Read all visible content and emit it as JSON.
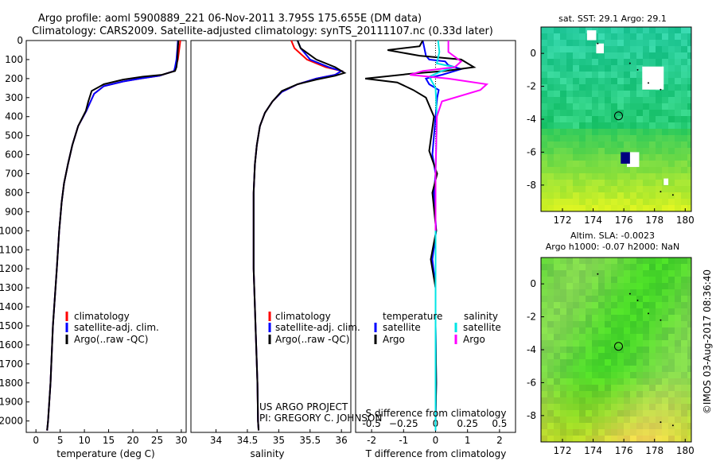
{
  "title": {
    "line1": "Argo profile: aoml 5900889_221 06-Nov-2011 3.795S 175.655E (DM data)",
    "line2": "Climatology: CARS2009. Satellite-adjusted climatology: synTS_20111107.nc (0.33d later)"
  },
  "chart_data": [
    {
      "type": "line",
      "name": "temperature-profile",
      "xlabel": "temperature (deg C)",
      "ylabel": "",
      "xlim": [
        -2,
        31
      ],
      "ylim": [
        2060,
        0
      ],
      "xticks": [
        0,
        5,
        10,
        15,
        20,
        25,
        30
      ],
      "yticks": [
        0,
        100,
        200,
        300,
        400,
        500,
        600,
        700,
        800,
        900,
        1000,
        1100,
        1200,
        1300,
        1400,
        1500,
        1600,
        1700,
        1800,
        1900,
        2000
      ],
      "legend": [
        "climatology",
        "satellite-adj. clim.",
        "Argo(..raw -QC)"
      ],
      "legend_position": "lower-center",
      "series": [
        {
          "name": "climatology",
          "color": "#ff0000",
          "x": [
            29.8,
            29.6,
            29.3,
            28.8,
            28.5,
            25.5,
            21.5,
            18,
            14,
            12,
            11.1,
            10.4,
            8.7,
            7.5,
            6.6,
            5.8,
            5.3,
            4.8,
            4.3,
            3.5,
            3.0,
            2.5,
            2.3
          ],
          "y": [
            0,
            40,
            100,
            140,
            160,
            185,
            200,
            215,
            240,
            280,
            330,
            370,
            450,
            550,
            650,
            750,
            850,
            1000,
            1200,
            1500,
            1800,
            2000,
            2050
          ]
        },
        {
          "name": "satellite-adj. clim.",
          "color": "#0000ff",
          "x": [
            29.3,
            29.2,
            29.0,
            28.7,
            28.5,
            25.5,
            21.5,
            18,
            14,
            12,
            11.1,
            10.4,
            8.7,
            7.5,
            6.6,
            5.8,
            5.3,
            4.8,
            4.3,
            3.5,
            3.0,
            2.5,
            2.3
          ],
          "y": [
            0,
            40,
            100,
            140,
            160,
            185,
            200,
            215,
            240,
            280,
            330,
            370,
            450,
            550,
            650,
            750,
            850,
            1000,
            1200,
            1500,
            1800,
            2000,
            2050
          ]
        },
        {
          "name": "Argo(..raw -QC)",
          "color": "#000000",
          "x": [
            29.4,
            29.3,
            29.2,
            29.0,
            28.7,
            26,
            22,
            18,
            14,
            11.5,
            10.8,
            10.3,
            8.7,
            7.5,
            6.6,
            5.8,
            5.3,
            4.8,
            4.3,
            3.5,
            3.0,
            2.5,
            2.3
          ],
          "y": [
            0,
            40,
            100,
            140,
            160,
            180,
            190,
            205,
            230,
            265,
            320,
            370,
            450,
            550,
            650,
            750,
            850,
            1000,
            1200,
            1500,
            1800,
            2000,
            2050
          ]
        }
      ]
    },
    {
      "type": "line",
      "name": "salinity-profile",
      "xlabel": "salinity",
      "ylabel": "",
      "xlim": [
        33.6,
        36.15
      ],
      "ylim": [
        2060,
        0
      ],
      "xticks": [
        34,
        34.5,
        35,
        35.5,
        36
      ],
      "legend": [
        "climatology",
        "satellite-adj. clim.",
        "Argo(..raw -QC)"
      ],
      "legend_position": "lower-center",
      "series": [
        {
          "name": "climatology",
          "color": "#ff0000",
          "x": [
            35.2,
            35.25,
            35.45,
            35.75,
            36.0,
            35.9,
            35.6,
            35.3,
            35.05,
            34.9,
            34.78,
            34.7,
            34.65,
            34.62,
            34.6,
            34.6,
            34.6,
            34.62,
            34.64,
            34.66,
            34.67,
            34.68
          ],
          "y": [
            0,
            40,
            100,
            140,
            160,
            180,
            200,
            230,
            270,
            320,
            380,
            450,
            550,
            650,
            800,
            1000,
            1200,
            1400,
            1600,
            1800,
            2000,
            2050
          ]
        },
        {
          "name": "satellite-adj. clim.",
          "color": "#0000ff",
          "x": [
            35.3,
            35.35,
            35.5,
            35.8,
            36.0,
            35.9,
            35.6,
            35.3,
            35.05,
            34.9,
            34.78,
            34.7,
            34.65,
            34.62,
            34.6,
            34.6,
            34.6,
            34.62,
            34.64,
            34.66,
            34.67,
            34.68
          ],
          "y": [
            0,
            40,
            100,
            140,
            160,
            180,
            200,
            230,
            270,
            320,
            380,
            450,
            550,
            650,
            800,
            1000,
            1200,
            1400,
            1600,
            1800,
            2000,
            2050
          ]
        },
        {
          "name": "Argo(..raw -QC)",
          "color": "#000000",
          "x": [
            35.3,
            35.35,
            35.6,
            35.9,
            36.05,
            35.9,
            35.6,
            35.3,
            35.05,
            34.9,
            34.78,
            34.7,
            34.65,
            34.62,
            34.6,
            34.6,
            34.6,
            34.62,
            34.64,
            34.66,
            34.67,
            34.68
          ],
          "y": [
            0,
            40,
            100,
            140,
            170,
            185,
            205,
            230,
            265,
            320,
            380,
            450,
            550,
            650,
            800,
            1000,
            1200,
            1400,
            1600,
            1800,
            2000,
            2050
          ]
        }
      ]
    },
    {
      "type": "line",
      "name": "difference-from-climatology",
      "xlabel": "T difference from climatology",
      "x2label": "S difference from climatology",
      "ylabel": "",
      "xlim": [
        -2.5,
        2.5
      ],
      "ylim": [
        2060,
        0
      ],
      "xticks": [
        -2,
        -1,
        0,
        1,
        2
      ],
      "x2ticks": [
        -0.5,
        -0.25,
        0,
        0.25,
        0.5
      ],
      "x2ticklabels": [
        "-0.5",
        "−0.25",
        "0",
        "0.25",
        "0.5"
      ],
      "legend_groups": {
        "temperature": [
          "satellite",
          "Argo"
        ],
        "salinity": [
          "satellite",
          "Argo"
        ]
      },
      "legend_position": "lower-center",
      "series": [
        {
          "name": "temperature satellite",
          "color": "#0000ff",
          "x": [
            -0.4,
            -0.35,
            -0.3,
            -0.2,
            0.3,
            0.4,
            0.8,
            0.2,
            -0.3,
            -0.2,
            0.1,
            0.05,
            0,
            -0.1,
            0.0,
            -0.05,
            0.02,
            -0.1,
            0,
            0,
            0.02,
            0,
            0
          ],
          "y": [
            0,
            40,
            80,
            100,
            110,
            130,
            150,
            180,
            200,
            230,
            260,
            300,
            400,
            600,
            700,
            800,
            1000,
            1150,
            1300,
            1500,
            1800,
            2000,
            2050
          ]
        },
        {
          "name": "temperature Argo",
          "color": "#000000",
          "x": [
            -0.4,
            -0.5,
            -1.5,
            -0.5,
            0.8,
            1.2,
            0.3,
            -0.8,
            -2.2,
            -1.2,
            -0.7,
            -0.3,
            -0.05,
            -0.2,
            0.05,
            -0.1,
            0.02,
            -0.15,
            0,
            0,
            0.02,
            0,
            0
          ],
          "y": [
            0,
            30,
            50,
            80,
            100,
            140,
            160,
            175,
            200,
            220,
            260,
            300,
            400,
            580,
            700,
            800,
            1000,
            1150,
            1300,
            1500,
            1800,
            2000,
            2050
          ]
        },
        {
          "name": "salinity satellite",
          "color": "#00e5e5",
          "x": [
            0.02,
            0.03,
            0.01,
            0.15,
            0.05,
            -0.05,
            0.0,
            0.01,
            0.0,
            0.0,
            0.0,
            0.0
          ],
          "y": [
            0,
            60,
            120,
            140,
            160,
            190,
            250,
            400,
            700,
            1000,
            1500,
            2050
          ]
        },
        {
          "name": "salinity Argo",
          "color": "#ff00ff",
          "x": [
            0.1,
            0.1,
            0.2,
            0.15,
            -0.1,
            -0.2,
            0.1,
            0.4,
            0.35,
            0.05,
            0.01,
            0.0,
            0.0
          ],
          "y": [
            0,
            60,
            110,
            140,
            160,
            180,
            200,
            230,
            260,
            320,
            400,
            700,
            1000
          ]
        }
      ]
    },
    {
      "type": "heatmap",
      "name": "sst-map",
      "title": "sat. SST: 29.1  Argo: 29.1",
      "xlim": [
        170.6,
        180.4
      ],
      "ylim": [
        -9.6,
        1.6
      ],
      "xticks": [
        172,
        174,
        176,
        178,
        180
      ],
      "yticks": [
        0,
        -2,
        -4,
        -6,
        -8
      ],
      "marker": {
        "lon": 175.655,
        "lat": -3.795
      }
    },
    {
      "type": "heatmap",
      "name": "sla-map",
      "title_line1": "Altim. SLA: -0.0023",
      "title_line2": "Argo h1000: -0.07 h2000: NaN",
      "xlim": [
        170.6,
        180.4
      ],
      "ylim": [
        -9.6,
        1.6
      ],
      "xticks": [
        172,
        174,
        176,
        178,
        180
      ],
      "yticks": [
        0,
        -2,
        -4,
        -6,
        -8
      ],
      "marker": {
        "lon": 175.655,
        "lat": -3.795
      }
    }
  ],
  "annotations": {
    "project_line1": "US ARGO PROJECT",
    "project_line2": "PI: GREGORY C. JOHNSON",
    "legend_temperature_header": "temperature",
    "legend_salinity_header": "salinity",
    "credit": "©IMOS 03-Aug-2017 08:36:40"
  },
  "colors": {
    "climatology": "#ff0000",
    "satellite": "#0000ff",
    "argo": "#000000",
    "salinity_satellite": "#00e5e5",
    "salinity_argo": "#ff00ff"
  }
}
